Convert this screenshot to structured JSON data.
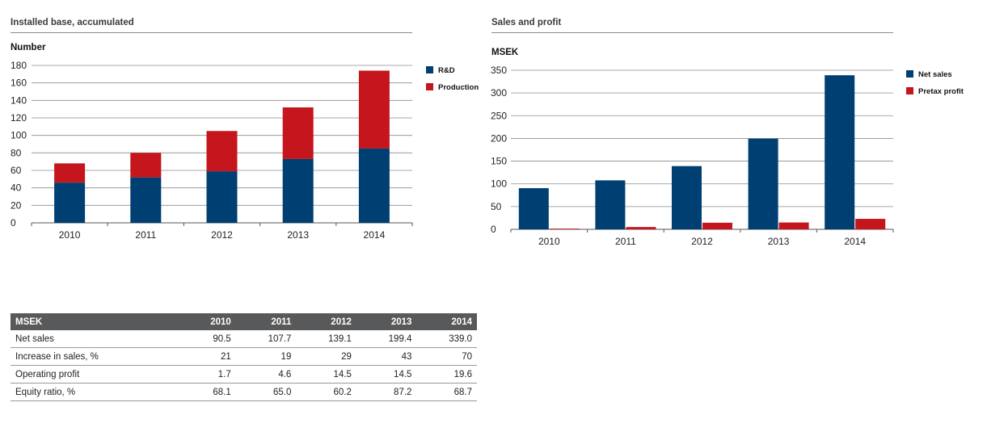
{
  "colors": {
    "navy": "#003f72",
    "red": "#c4161c"
  },
  "left_panel": {
    "title": "Installed base, accumulated",
    "unit": "Number"
  },
  "right_panel": {
    "title": "Sales and profit",
    "unit": "MSEK"
  },
  "chart_data": [
    {
      "type": "bar",
      "stacked": true,
      "categories": [
        "2010",
        "2011",
        "2012",
        "2013",
        "2014"
      ],
      "series": [
        {
          "name": "R&D",
          "values": [
            46,
            52,
            59,
            73,
            85
          ],
          "color": "#003f72"
        },
        {
          "name": "Production",
          "values": [
            22,
            28,
            46,
            59,
            89
          ],
          "color": "#c4161c"
        }
      ],
      "ylim": [
        0,
        180
      ],
      "yticks": [
        "0",
        "20",
        "40",
        "60",
        "80",
        "100",
        "120",
        "140",
        "160",
        "180"
      ],
      "grid": true,
      "legend": "right"
    },
    {
      "type": "bar",
      "stacked": false,
      "categories": [
        "2010",
        "2011",
        "2012",
        "2013",
        "2014"
      ],
      "series": [
        {
          "name": "Net sales",
          "values": [
            90.5,
            107.7,
            139.1,
            199.4,
            339.0
          ],
          "color": "#003f72"
        },
        {
          "name": "Pretax profit",
          "values": [
            1.5,
            5,
            14.5,
            15,
            23
          ],
          "color": "#c4161c"
        }
      ],
      "ylim": [
        0,
        350
      ],
      "yticks": [
        "0",
        "50",
        "100",
        "150",
        "200",
        "250",
        "300",
        "350"
      ],
      "grid": true,
      "legend": "right"
    }
  ],
  "table": {
    "headers": [
      "MSEK",
      "2010",
      "2011",
      "2012",
      "2013",
      "2014"
    ],
    "rows": [
      [
        "Net sales",
        "90.5",
        "107.7",
        "139.1",
        "199.4",
        "339.0"
      ],
      [
        "Increase in sales, %",
        "21",
        "19",
        "29",
        "43",
        "70"
      ],
      [
        "Operating profit",
        "1.7",
        "4.6",
        "14.5",
        "14.5",
        "19.6"
      ],
      [
        "Equity ratio, %",
        "68.1",
        "65.0",
        "60.2",
        "87.2",
        "68.7"
      ]
    ]
  }
}
